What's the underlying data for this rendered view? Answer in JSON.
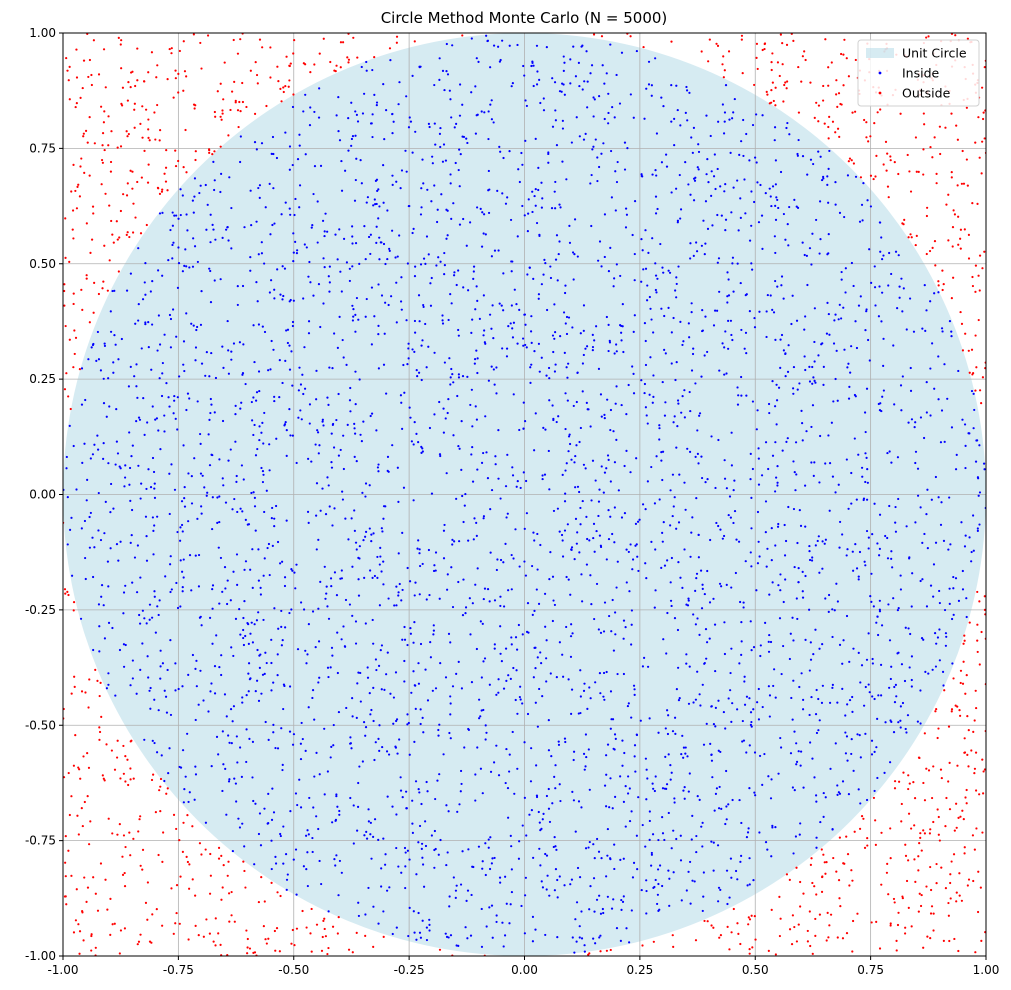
{
  "chart_data": {
    "type": "scatter",
    "title": "Circle Method Monte Carlo (N = 5000)",
    "xlabel": "",
    "ylabel": "",
    "xlim": [
      -1.0,
      1.0
    ],
    "ylim": [
      -1.0,
      1.0
    ],
    "grid": true,
    "xticks": [
      "-1.00",
      "-0.75",
      "-0.50",
      "-0.25",
      "0.00",
      "0.25",
      "0.50",
      "0.75",
      "1.00"
    ],
    "yticks": [
      "-1.00",
      "-0.75",
      "-0.50",
      "-0.25",
      "0.00",
      "0.25",
      "0.50",
      "0.75",
      "1.00"
    ],
    "tick_values": [
      -1.0,
      -0.75,
      -0.5,
      -0.25,
      0.0,
      0.25,
      0.5,
      0.75,
      1.0
    ],
    "n_points": 5000,
    "circle": {
      "center": [
        0,
        0
      ],
      "radius": 1,
      "color": "#add8e6"
    },
    "legend": {
      "placement": "top-right",
      "entries": [
        {
          "label": "Unit Circle",
          "kind": "patch",
          "color": "#add8e6"
        },
        {
          "label": "Inside",
          "kind": "marker",
          "color": "#0000ff"
        },
        {
          "label": "Outside",
          "kind": "marker",
          "color": "#ff0000"
        }
      ]
    },
    "series": [
      {
        "name": "Inside",
        "color": "#0000ff",
        "rule": "x^2 + y^2 <= 1"
      },
      {
        "name": "Outside",
        "color": "#ff0000",
        "rule": "x^2 + y^2 > 1"
      }
    ]
  }
}
